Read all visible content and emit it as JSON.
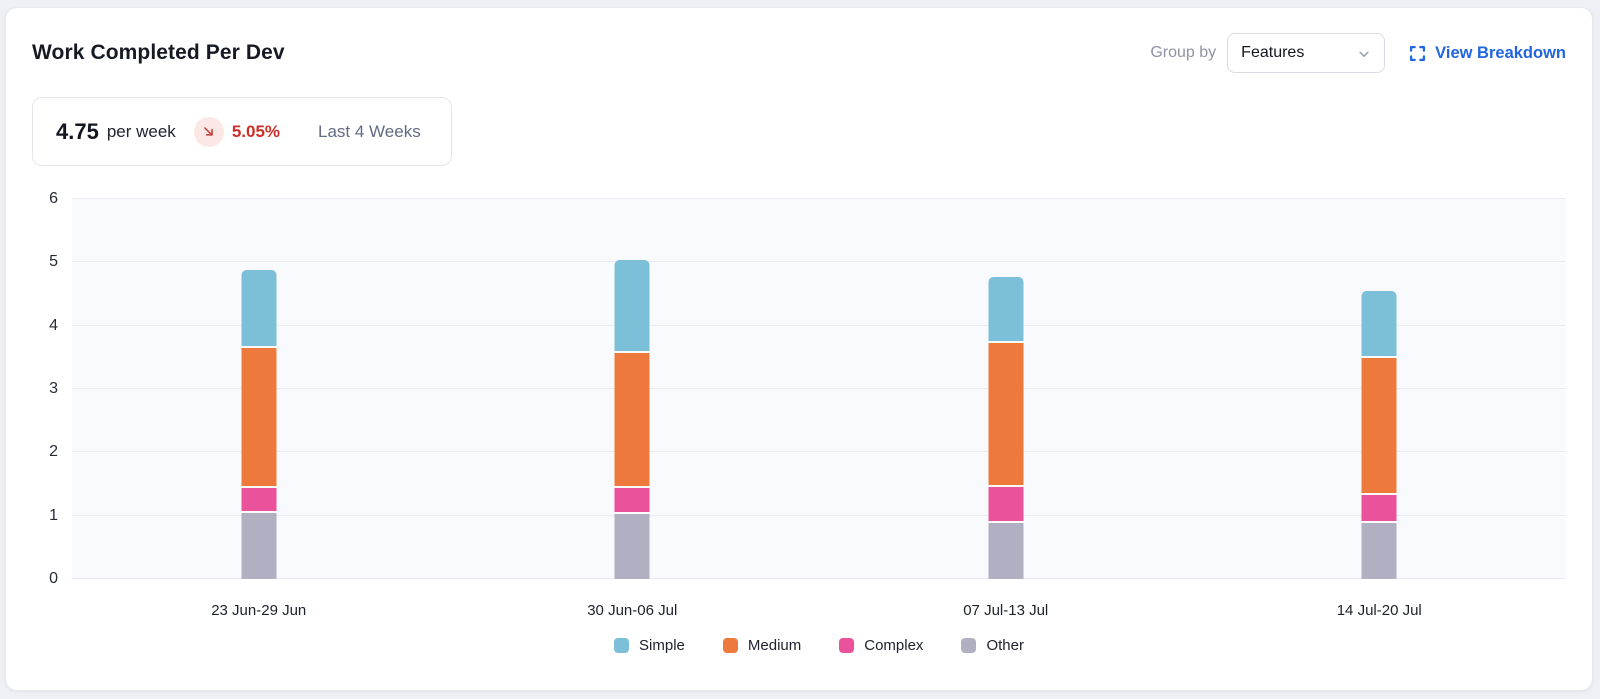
{
  "header": {
    "title": "Work Completed Per Dev",
    "group_by_label": "Group by",
    "group_by_value": "Features",
    "view_breakdown_label": "View Breakdown"
  },
  "stat_card": {
    "value": "4.75",
    "unit": "per week",
    "delta": "5.05%",
    "delta_direction": "down",
    "period": "Last 4 Weeks"
  },
  "colors": {
    "accent_blue": "#2165e0",
    "delta_red": "#cb2f2a",
    "delta_badge_bg": "#fbe7e6",
    "plot_background": "#f9fafd",
    "gridline": "#e9ebf0"
  },
  "chart_data": {
    "type": "bar",
    "stacked": true,
    "title": "Work Completed Per Dev",
    "categories": [
      "23 Jun-29 Jun",
      "30 Jun-06 Jul",
      "07 Jul-13 Jul",
      "14 Jul-20 Jul"
    ],
    "series": [
      {
        "name": "Other",
        "color": "#b1b0c2",
        "values": [
          1.05,
          1.03,
          0.88,
          0.88
        ]
      },
      {
        "name": "Complex",
        "color": "#ea529b",
        "values": [
          0.35,
          0.37,
          0.54,
          0.42
        ]
      },
      {
        "name": "Medium",
        "color": "#ed7a3c",
        "values": [
          2.18,
          2.11,
          2.24,
          2.12
        ]
      },
      {
        "name": "Simple",
        "color": "#7bbfd9",
        "values": [
          1.2,
          1.44,
          1.02,
          1.03
        ]
      }
    ],
    "totals": [
      4.78,
      4.95,
      4.68,
      4.45
    ],
    "xlabel": "",
    "ylabel": "",
    "ylim": [
      0,
      6
    ],
    "yticks": [
      0,
      1,
      2,
      3,
      4,
      5,
      6
    ],
    "grid": true,
    "legend_order": [
      "Simple",
      "Medium",
      "Complex",
      "Other"
    ],
    "legend_position": "bottom"
  }
}
